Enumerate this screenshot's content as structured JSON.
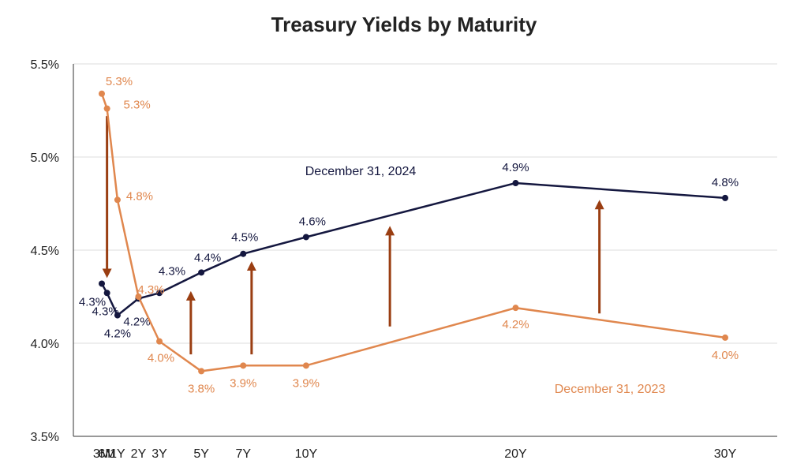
{
  "chart_data": {
    "type": "line",
    "title": "Treasury Yields by Maturity",
    "xlabel": "",
    "ylabel": "",
    "categories": [
      "3M",
      "6M",
      "1Y",
      "2Y",
      "3Y",
      "5Y",
      "7Y",
      "10Y",
      "20Y",
      "30Y"
    ],
    "x_years": [
      0.25,
      0.5,
      1,
      2,
      3,
      5,
      7,
      10,
      20,
      30
    ],
    "y_ticks": [
      "3.5%",
      "4.0%",
      "4.5%",
      "5.0%",
      "5.5%"
    ],
    "y_tick_values": [
      3.5,
      4.0,
      4.5,
      5.0,
      5.5
    ],
    "ylim": [
      3.5,
      5.5
    ],
    "grid": true,
    "series": [
      {
        "name": "December 31, 2024",
        "color": "#14173f",
        "values": [
          4.32,
          4.27,
          4.15,
          4.24,
          4.27,
          4.38,
          4.48,
          4.57,
          4.86,
          4.78
        ],
        "labels": [
          "4.3%",
          "4.3%",
          "4.2%",
          "4.2%",
          "4.3%",
          "4.4%",
          "4.5%",
          "4.6%",
          "4.9%",
          "4.8%"
        ]
      },
      {
        "name": "December 31, 2023",
        "color": "#e0874e",
        "values": [
          5.34,
          5.26,
          4.77,
          4.25,
          4.01,
          3.85,
          3.88,
          3.88,
          4.19,
          4.03
        ],
        "labels": [
          "5.3%",
          "5.3%",
          "4.8%",
          "4.3%",
          "4.0%",
          "3.8%",
          "3.9%",
          "3.9%",
          "4.2%",
          "4.0%"
        ]
      }
    ],
    "arrows": [
      {
        "x": 0.5,
        "from": 5.22,
        "to": 4.35,
        "direction": "down"
      },
      {
        "x": 4.5,
        "from": 3.94,
        "to": 4.28,
        "direction": "up"
      },
      {
        "x": 7.4,
        "from": 3.94,
        "to": 4.44,
        "direction": "up"
      },
      {
        "x": 14,
        "from": 4.09,
        "to": 4.63,
        "direction": "up"
      },
      {
        "x": 24,
        "from": 4.16,
        "to": 4.77,
        "direction": "up"
      }
    ],
    "arrow_color": "#9a3e12"
  }
}
